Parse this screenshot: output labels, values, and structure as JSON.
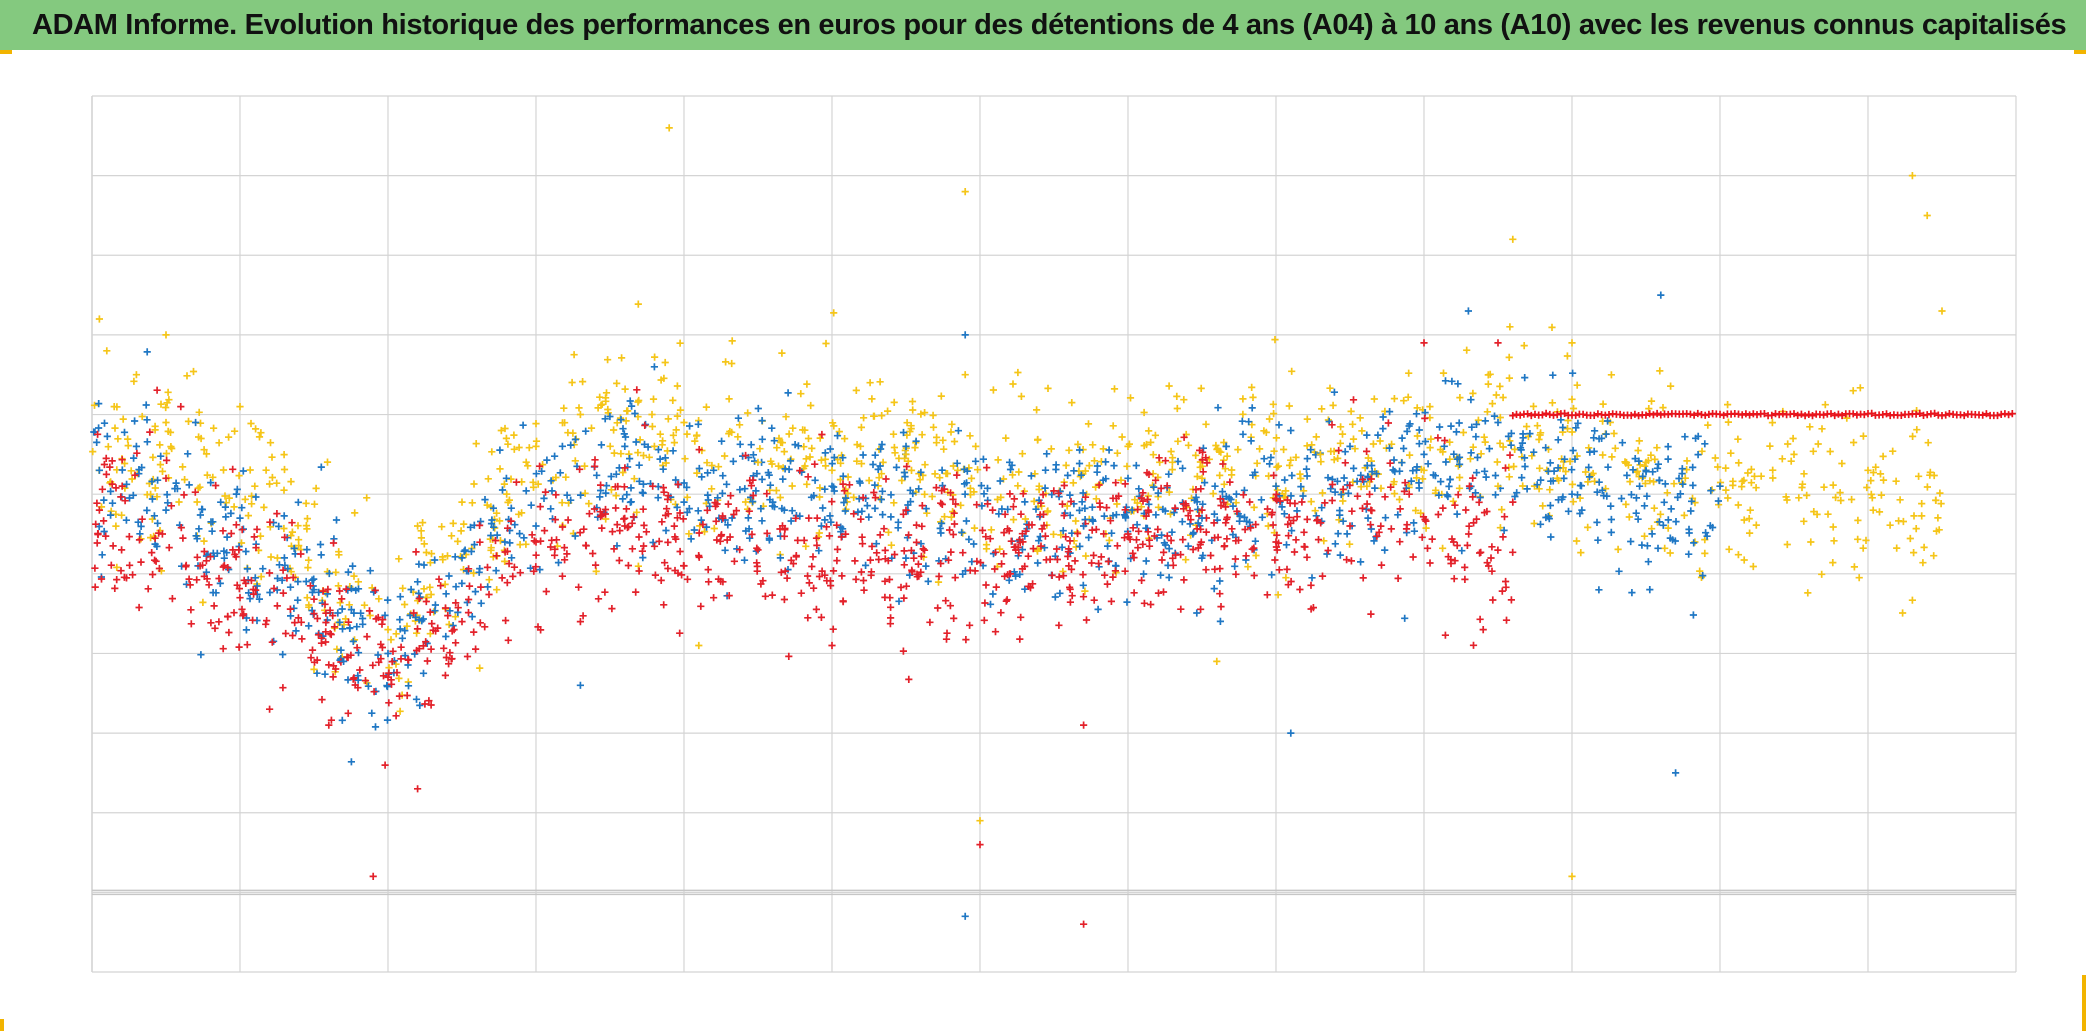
{
  "title": "ADAM Informe. Evolution historique des performances en euros pour des détentions de 4 ans (A04) à 10 ans (A10) avec les revenus connus capitalisés",
  "colors": {
    "title_bar": "#84c97f",
    "grid": "#d4d4d4",
    "axis_line": "#c6c6c6",
    "corner_marks": "#f2b400"
  },
  "chart_data": {
    "type": "scatter",
    "title": "ADAM Informe. Evolution historique des performances en euros pour des détentions de 4 ans (A04) à 10 ans (A10) avec les revenus connus capitalisés",
    "xlabel": "",
    "ylabel": "",
    "xlim": [
      0,
      13
    ],
    "ylim": [
      -6,
      5
    ],
    "grid": true,
    "axis_labels_visible": false,
    "legend": "none",
    "marker": "plus",
    "series_note": "",
    "series": [
      {
        "color": "#f5c518",
        "x_range": [
          0.0,
          12.5
        ],
        "points": [
          [
            0.05,
            2.2
          ],
          [
            0.1,
            1.8
          ],
          [
            0.15,
            1.1
          ],
          [
            0.3,
            1.5
          ],
          [
            0.5,
            0.9
          ],
          [
            0.5,
            2.0
          ],
          [
            1.0,
            1.1
          ],
          [
            1.1,
            0.1
          ],
          [
            1.5,
            -2.2
          ],
          [
            1.8,
            -1.1
          ],
          [
            2.0,
            -1.7
          ],
          [
            2.2,
            -0.4
          ],
          [
            2.5,
            -0.1
          ],
          [
            2.8,
            0.7
          ],
          [
            3.0,
            0.6
          ],
          [
            3.3,
            1.0
          ],
          [
            3.8,
            0.6
          ],
          [
            3.9,
            4.6
          ],
          [
            4.0,
            0.9
          ],
          [
            4.1,
            -1.9
          ],
          [
            4.5,
            0.4
          ],
          [
            5.0,
            0.3
          ],
          [
            5.5,
            0.5
          ],
          [
            5.9,
            1.5
          ],
          [
            5.9,
            3.8
          ],
          [
            6.0,
            -4.1
          ],
          [
            6.4,
            0.1
          ],
          [
            7.0,
            0.6
          ],
          [
            7.3,
            0.4
          ],
          [
            7.5,
            0.2
          ],
          [
            7.6,
            -2.1
          ],
          [
            8.0,
            0.1
          ],
          [
            8.3,
            0.5
          ],
          [
            8.8,
            1.2
          ],
          [
            9.0,
            0.3
          ],
          [
            9.5,
            0.1
          ],
          [
            9.6,
            3.2
          ],
          [
            9.9,
            0.2
          ],
          [
            10.0,
            1.9
          ],
          [
            10.0,
            -4.8
          ],
          [
            10.5,
            0.4
          ],
          [
            11.0,
            0.1
          ],
          [
            11.5,
            0.5
          ],
          [
            11.9,
            1.3
          ],
          [
            12.0,
            0.3
          ],
          [
            12.3,
            4.0
          ],
          [
            12.4,
            3.5
          ],
          [
            12.5,
            2.3
          ]
        ]
      },
      {
        "color": "#1f77c4",
        "x_range": [
          0.0,
          11.0
        ],
        "points": [
          [
            0.05,
            0.3
          ],
          [
            0.3,
            0.6
          ],
          [
            0.5,
            -0.2
          ],
          [
            0.7,
            0.9
          ],
          [
            1.0,
            -0.3
          ],
          [
            1.3,
            -0.8
          ],
          [
            1.5,
            -1.2
          ],
          [
            1.7,
            -2.1
          ],
          [
            2.0,
            -2.0
          ],
          [
            2.2,
            -1.1
          ],
          [
            2.5,
            -0.8
          ],
          [
            2.8,
            0.2
          ],
          [
            3.0,
            -0.4
          ],
          [
            3.3,
            -2.4
          ],
          [
            3.6,
            0.6
          ],
          [
            3.8,
            1.6
          ],
          [
            4.0,
            -0.1
          ],
          [
            4.2,
            0.3
          ],
          [
            4.6,
            -0.1
          ],
          [
            5.0,
            0.1
          ],
          [
            5.5,
            0.6
          ],
          [
            5.9,
            2.0
          ],
          [
            5.9,
            -5.3
          ],
          [
            6.2,
            0.4
          ],
          [
            6.7,
            -0.4
          ],
          [
            7.0,
            0.2
          ],
          [
            7.5,
            -0.3
          ],
          [
            8.0,
            0.1
          ],
          [
            8.1,
            0.8
          ],
          [
            8.1,
            -3.0
          ],
          [
            8.5,
            0.6
          ],
          [
            9.0,
            0.5
          ],
          [
            9.3,
            2.3
          ],
          [
            9.5,
            0.9
          ],
          [
            10.0,
            0.0
          ],
          [
            10.2,
            0.7
          ],
          [
            10.5,
            0.3
          ],
          [
            10.6,
            2.5
          ],
          [
            10.7,
            -3.5
          ],
          [
            11.0,
            0.1
          ]
        ]
      },
      {
        "color": "#e3212a",
        "x_range": [
          0.0,
          9.6
        ],
        "points": [
          [
            0.05,
            -0.2
          ],
          [
            0.2,
            -0.7
          ],
          [
            0.5,
            0.2
          ],
          [
            0.6,
            1.1
          ],
          [
            1.0,
            -1.3
          ],
          [
            1.2,
            -2.7
          ],
          [
            1.5,
            -1.5
          ],
          [
            1.6,
            -2.9
          ],
          [
            1.9,
            -4.8
          ],
          [
            2.0,
            -2.3
          ],
          [
            2.2,
            -3.7
          ],
          [
            2.5,
            -1.6
          ],
          [
            3.0,
            -0.6
          ],
          [
            3.3,
            -1.6
          ],
          [
            3.6,
            -0.4
          ],
          [
            4.0,
            -0.9
          ],
          [
            4.2,
            -1.3
          ],
          [
            4.5,
            -0.7
          ],
          [
            4.9,
            -0.3
          ],
          [
            5.0,
            -1.9
          ],
          [
            5.5,
            -0.2
          ],
          [
            5.8,
            -1.4
          ],
          [
            6.0,
            -4.4
          ],
          [
            6.2,
            -1.0
          ],
          [
            6.6,
            -0.9
          ],
          [
            6.7,
            -2.9
          ],
          [
            6.7,
            -5.4
          ],
          [
            7.0,
            -0.5
          ],
          [
            7.5,
            -0.2
          ],
          [
            8.0,
            -0.6
          ],
          [
            8.5,
            -0.4
          ],
          [
            8.9,
            0.0
          ],
          [
            9.0,
            1.9
          ],
          [
            9.2,
            -0.6
          ],
          [
            9.4,
            -1.7
          ],
          [
            9.5,
            1.9
          ],
          [
            9.6,
            -0.1
          ]
        ]
      },
      {
        "color": "#e8141c",
        "note": "",
        "x_range": [
          9.6,
          13.0
        ],
        "y_constant": 1.0
      }
    ]
  }
}
